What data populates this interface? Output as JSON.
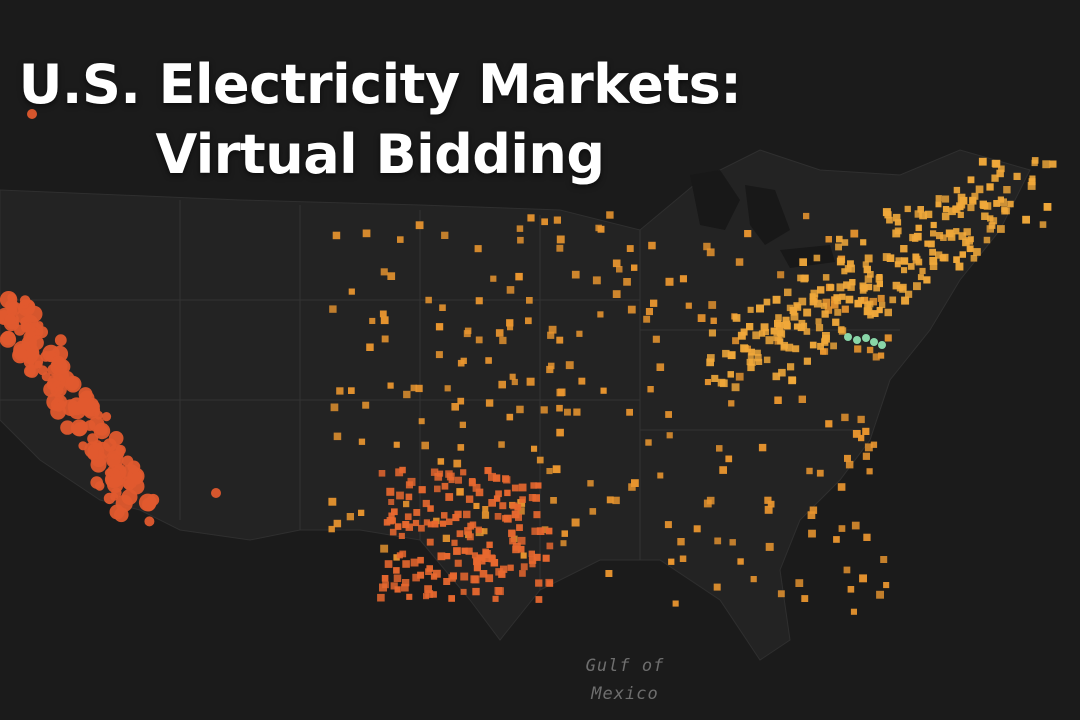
{
  "title": {
    "line1": "U.S. Electricity Markets:",
    "line2": "Virtual Bidding"
  },
  "water_label": {
    "line1": "Gulf of",
    "line2": "Mexico"
  },
  "colors": {
    "background": "#1b1b1b",
    "land": "#262626",
    "borders": "#3a3a3a",
    "ocean": "#151515",
    "west_points": "#e05a2e",
    "texas_points": "#e8682f",
    "central_points": "#e8952f",
    "east_points": "#f0a83a",
    "highlight_points": "#8fe0b0"
  },
  "legend": [],
  "map_layers": {
    "west_coast_nodes": "circle",
    "texas_nodes": "square",
    "central_nodes": "square",
    "eastern_nodes": "square",
    "highlight_nodes": "circle"
  }
}
